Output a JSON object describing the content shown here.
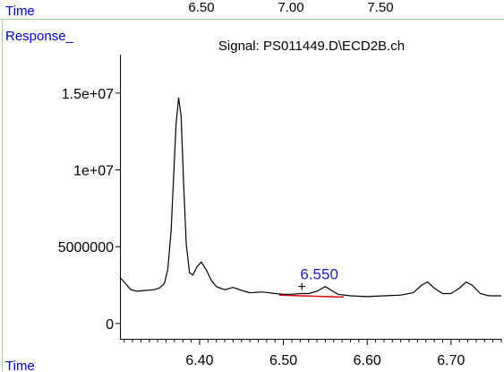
{
  "top_bar": {
    "time_label": "Time",
    "ticks": [
      "6.50",
      "7.00",
      "7.50"
    ]
  },
  "chart_data": {
    "type": "line",
    "title": "Signal: PS011449.D\\ECD2B.ch",
    "ylabel": "Response_",
    "xlabel": "Time",
    "xlim": [
      6.305,
      6.76
    ],
    "ylim": [
      -1000000,
      17500000
    ],
    "x_ticks": [
      6.4,
      6.5,
      6.6,
      6.7
    ],
    "x_tick_labels": [
      "6.40",
      "6.50",
      "6.60",
      "6.70"
    ],
    "y_ticks": [
      0,
      5000000,
      10000000,
      15000000
    ],
    "y_tick_labels": [
      "0",
      "5000000",
      "1e+07",
      "1.5e+07"
    ],
    "series": [
      {
        "color": "#000000",
        "points": [
          [
            6.305,
            3000000
          ],
          [
            6.31,
            2700000
          ],
          [
            6.318,
            2200000
          ],
          [
            6.325,
            2100000
          ],
          [
            6.335,
            2150000
          ],
          [
            6.345,
            2200000
          ],
          [
            6.352,
            2300000
          ],
          [
            6.358,
            2600000
          ],
          [
            6.362,
            3500000
          ],
          [
            6.366,
            6000000
          ],
          [
            6.369,
            9500000
          ],
          [
            6.372,
            13000000
          ],
          [
            6.375,
            14700000
          ],
          [
            6.378,
            13500000
          ],
          [
            6.381,
            9000000
          ],
          [
            6.384,
            5200000
          ],
          [
            6.388,
            3300000
          ],
          [
            6.392,
            3150000
          ],
          [
            6.397,
            3700000
          ],
          [
            6.402,
            4000000
          ],
          [
            6.408,
            3500000
          ],
          [
            6.414,
            2800000
          ],
          [
            6.42,
            2400000
          ],
          [
            6.43,
            2200000
          ],
          [
            6.44,
            2350000
          ],
          [
            6.45,
            2150000
          ],
          [
            6.46,
            2000000
          ],
          [
            6.475,
            2050000
          ],
          [
            6.49,
            1950000
          ],
          [
            6.5,
            1900000
          ],
          [
            6.51,
            1900000
          ],
          [
            6.52,
            1950000
          ],
          [
            6.53,
            1950000
          ],
          [
            6.54,
            2100000
          ],
          [
            6.55,
            2400000
          ],
          [
            6.556,
            2200000
          ],
          [
            6.565,
            1900000
          ],
          [
            6.58,
            1800000
          ],
          [
            6.6,
            1750000
          ],
          [
            6.62,
            1800000
          ],
          [
            6.64,
            1850000
          ],
          [
            6.655,
            2000000
          ],
          [
            6.665,
            2500000
          ],
          [
            6.672,
            2700000
          ],
          [
            6.68,
            2300000
          ],
          [
            6.69,
            1950000
          ],
          [
            6.7,
            1950000
          ],
          [
            6.71,
            2300000
          ],
          [
            6.718,
            2700000
          ],
          [
            6.725,
            2500000
          ],
          [
            6.735,
            1950000
          ],
          [
            6.745,
            1800000
          ],
          [
            6.76,
            1800000
          ]
        ]
      }
    ],
    "baseline": {
      "color": "#e00000",
      "points": [
        [
          6.495,
          1850000
        ],
        [
          6.572,
          1720000
        ]
      ]
    },
    "annotation": {
      "text": "6.550",
      "x": 6.55,
      "y": 2400000,
      "color": "#2020c0"
    },
    "marker": {
      "symbol": "+",
      "x": 6.522,
      "y": 2450000
    }
  },
  "colors": {
    "frame_label": "#0000cc",
    "frame_line": "#9bdc9b",
    "axis": "#000000"
  }
}
